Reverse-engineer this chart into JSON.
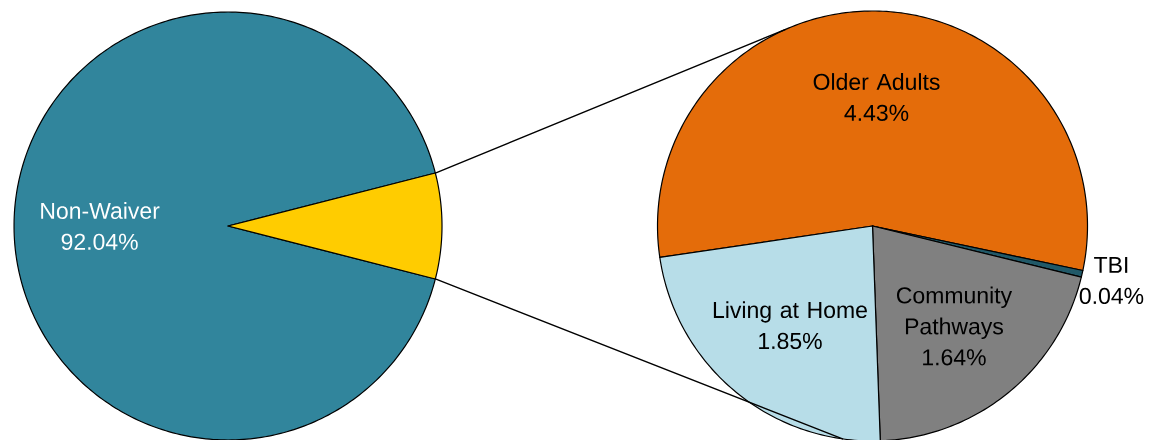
{
  "chart_data": [
    {
      "type": "pie",
      "categories": [
        "Non-Waiver",
        null
      ],
      "values": [
        92.04,
        7.96
      ],
      "colors": [
        "#31859c",
        "#ffcc00"
      ],
      "value_labels": [
        "92.04%",
        null
      ]
    },
    {
      "type": "pie",
      "categories": [
        "Older Adults",
        "TBI",
        "Community Pathways",
        "Living at Home"
      ],
      "values": [
        4.43,
        0.04,
        1.64,
        1.85
      ],
      "colors": [
        "#e46c0a",
        "#215968",
        "#808080",
        "#b7dde8"
      ],
      "value_labels": [
        "4.43%",
        "0.04%",
        "1.64%",
        "1.85%"
      ]
    }
  ]
}
